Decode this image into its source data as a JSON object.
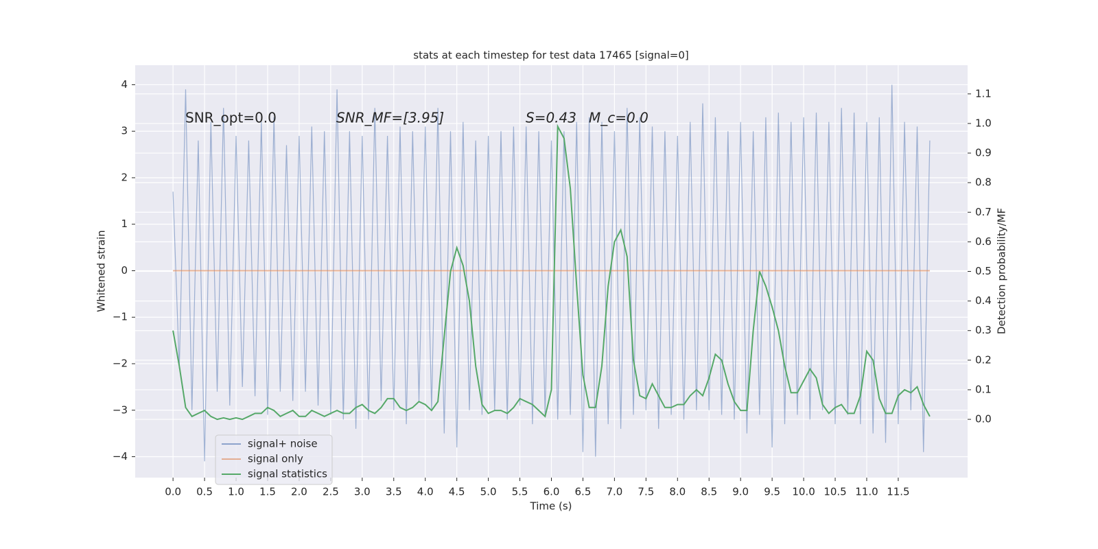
{
  "chart_data": {
    "type": "line",
    "title": "stats at each timestep for test data 17465 [signal=0]",
    "xlabel": "Time (s)",
    "ylabel": "Whitened strain",
    "y2label": "Detection probability/MF",
    "annotations": [
      "SNR_opt=0.0",
      "SNR_MF=[3.95]",
      "S=0.43",
      "M_c=0.0"
    ],
    "x": [
      0,
      0.1,
      0.2,
      0.3,
      0.4,
      0.5,
      0.6,
      0.7,
      0.8,
      0.9,
      1,
      1.1,
      1.2,
      1.3,
      1.4,
      1.5,
      1.6,
      1.7,
      1.8,
      1.9,
      2,
      2.1,
      2.2,
      2.3,
      2.4,
      2.5,
      2.6,
      2.7,
      2.8,
      2.9,
      3,
      3.1,
      3.2,
      3.3,
      3.4,
      3.5,
      3.6,
      3.7,
      3.8,
      3.9,
      4,
      4.1,
      4.2,
      4.3,
      4.4,
      4.5,
      4.6,
      4.7,
      4.8,
      4.9,
      5,
      5.1,
      5.2,
      5.3,
      5.4,
      5.5,
      5.6,
      5.7,
      5.8,
      5.9,
      6,
      6.1,
      6.2,
      6.3,
      6.4,
      6.5,
      6.6,
      6.7,
      6.8,
      6.9,
      7,
      7.1,
      7.2,
      7.3,
      7.4,
      7.5,
      7.6,
      7.7,
      7.8,
      7.9,
      8,
      8.1,
      8.2,
      8.3,
      8.4,
      8.5,
      8.6,
      8.7,
      8.8,
      8.9,
      9,
      9.1,
      9.2,
      9.3,
      9.4,
      9.5,
      9.6,
      9.7,
      9.8,
      9.9,
      10,
      10.1,
      10.2,
      10.3,
      10.4,
      10.5,
      10.6,
      10.7,
      10.8,
      10.9,
      11,
      11.1,
      11.2,
      11.3,
      11.4,
      11.5,
      11.6,
      11.7,
      11.8,
      11.9,
      12
    ],
    "series": [
      {
        "name": "signal+ noise",
        "color": "#4c72b0",
        "values": [
          1.7,
          -2.1,
          3.9,
          -3.0,
          2.8,
          -4.1,
          3.2,
          -2.6,
          3.5,
          -2.9,
          2.9,
          -2.5,
          2.8,
          -2.7,
          3.2,
          -3.1,
          3.3,
          -2.6,
          2.7,
          -2.8,
          2.9,
          -2.6,
          3.1,
          -2.9,
          3.0,
          -3.1,
          3.9,
          -3.2,
          3.0,
          -3.4,
          2.9,
          -3.2,
          3.5,
          -2.8,
          2.9,
          -3.0,
          3.1,
          -3.3,
          3.0,
          -2.8,
          3.1,
          -3.0,
          3.5,
          -3.5,
          3.0,
          -3.8,
          3.2,
          -3.0,
          2.8,
          -3.1,
          2.9,
          -3.0,
          3.0,
          -3.2,
          3.1,
          -2.9,
          3.1,
          -3.3,
          3.0,
          -3.1,
          2.8,
          -3.2,
          3.0,
          -3.1,
          3.2,
          -3.9,
          3.3,
          -4.0,
          3.2,
          -3.3,
          3.0,
          -3.4,
          3.5,
          -3.1,
          3.3,
          -3.0,
          3.1,
          -3.4,
          3.0,
          -3.1,
          2.9,
          -3.2,
          3.2,
          -3.0,
          3.6,
          -3.0,
          3.3,
          -3.1,
          3.0,
          -3.2,
          3.2,
          -3.5,
          3.0,
          -3.1,
          3.3,
          -3.8,
          3.4,
          -3.3,
          3.2,
          -3.1,
          3.3,
          -3.2,
          3.4,
          -3.0,
          3.2,
          -3.3,
          3.5,
          -3.1,
          3.4,
          -3.3,
          3.2,
          -3.5,
          3.3,
          -3.7,
          4.0,
          -3.3,
          3.2,
          -3.0,
          3.1,
          -3.9,
          2.8
        ]
      },
      {
        "name": "signal only",
        "color": "#dd8452",
        "values": [
          0,
          0,
          0,
          0,
          0,
          0,
          0,
          0,
          0,
          0,
          0,
          0,
          0,
          0,
          0,
          0,
          0,
          0,
          0,
          0,
          0,
          0,
          0,
          0,
          0,
          0,
          0,
          0,
          0,
          0,
          0,
          0,
          0,
          0,
          0,
          0,
          0,
          0,
          0,
          0,
          0,
          0,
          0,
          0,
          0,
          0,
          0,
          0,
          0,
          0,
          0,
          0,
          0,
          0,
          0,
          0,
          0,
          0,
          0,
          0,
          0,
          0,
          0,
          0,
          0,
          0,
          0,
          0,
          0,
          0,
          0,
          0,
          0,
          0,
          0,
          0,
          0,
          0,
          0,
          0,
          0,
          0,
          0,
          0,
          0,
          0,
          0,
          0,
          0,
          0,
          0,
          0,
          0,
          0,
          0,
          0,
          0,
          0,
          0,
          0,
          0,
          0,
          0,
          0,
          0,
          0,
          0,
          0,
          0,
          0,
          0,
          0,
          0,
          0,
          0,
          0,
          0,
          0,
          0,
          0,
          0
        ]
      },
      {
        "name": "signal statistics",
        "color": "#55a868",
        "axis": "y2",
        "values": [
          0.3,
          0.18,
          0.04,
          0.01,
          0.02,
          0.03,
          0.01,
          0.0,
          0.005,
          0.0,
          0.005,
          0.0,
          0.01,
          0.02,
          0.02,
          0.04,
          0.03,
          0.01,
          0.02,
          0.03,
          0.01,
          0.01,
          0.03,
          0.02,
          0.01,
          0.02,
          0.03,
          0.02,
          0.02,
          0.04,
          0.05,
          0.03,
          0.02,
          0.04,
          0.07,
          0.07,
          0.04,
          0.03,
          0.04,
          0.06,
          0.05,
          0.03,
          0.06,
          0.28,
          0.5,
          0.58,
          0.52,
          0.4,
          0.18,
          0.05,
          0.02,
          0.03,
          0.03,
          0.02,
          0.04,
          0.07,
          0.06,
          0.05,
          0.03,
          0.01,
          0.1,
          0.99,
          0.95,
          0.78,
          0.45,
          0.15,
          0.04,
          0.04,
          0.18,
          0.45,
          0.6,
          0.64,
          0.55,
          0.2,
          0.08,
          0.07,
          0.12,
          0.08,
          0.04,
          0.04,
          0.05,
          0.05,
          0.08,
          0.1,
          0.08,
          0.14,
          0.22,
          0.2,
          0.12,
          0.06,
          0.03,
          0.03,
          0.3,
          0.5,
          0.45,
          0.38,
          0.3,
          0.18,
          0.09,
          0.09,
          0.13,
          0.17,
          0.14,
          0.05,
          0.02,
          0.04,
          0.05,
          0.02,
          0.02,
          0.08,
          0.23,
          0.2,
          0.07,
          0.02,
          0.02,
          0.08,
          0.1,
          0.09,
          0.11,
          0.05,
          0.01
        ]
      }
    ],
    "xlim": [
      -0.6,
      12.6
    ],
    "xticks": [
      {
        "value": 0,
        "label": "0.0"
      },
      0.5,
      {
        "value": 1,
        "label": "1.0"
      },
      1.5,
      {
        "value": 2,
        "label": "2.0"
      },
      2.5,
      {
        "value": 3,
        "label": "3.0"
      },
      3.5,
      {
        "value": 4,
        "label": "4.0"
      },
      4.5,
      {
        "value": 5,
        "label": "5.0"
      },
      5.5,
      {
        "value": 6,
        "label": "6.0"
      },
      6.5,
      {
        "value": 7,
        "label": "7.0"
      },
      7.5,
      {
        "value": 8,
        "label": "8.0"
      },
      8.5,
      {
        "value": 9,
        "label": "9.0"
      },
      9.5,
      {
        "value": 10,
        "label": "10.0"
      },
      10.5,
      {
        "value": 11,
        "label": "11.0"
      },
      11.5
    ],
    "ylim": [
      -4.45,
      4.42
    ],
    "yticks": [
      {
        "value": -4,
        "label": "−4"
      },
      {
        "value": -3,
        "label": "−3"
      },
      {
        "value": -2,
        "label": "−2"
      },
      {
        "value": -1,
        "label": "−1"
      },
      0,
      1,
      2,
      3,
      4
    ],
    "y2lim": [
      -0.197,
      1.197
    ],
    "y2ticks": [
      {
        "value": 0,
        "label": "0.0"
      },
      0.1,
      0.2,
      0.3,
      0.4,
      0.5,
      0.6,
      0.7,
      0.8,
      0.9,
      {
        "value": 1,
        "label": "1.0"
      },
      1.1
    ],
    "grid": true,
    "legend": "lower left"
  }
}
